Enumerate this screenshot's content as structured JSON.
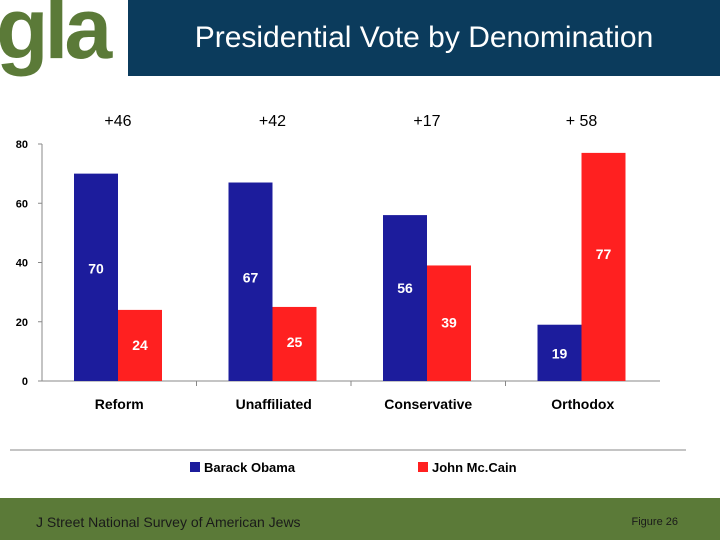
{
  "header": {
    "logo_text": "gla",
    "title": "Presidential Vote by Denomination"
  },
  "footer": {
    "source": "J Street National Survey of American Jews",
    "figure": "Figure 26"
  },
  "colors": {
    "obama": "#1c1c9c",
    "mccain": "#ff2020",
    "header_bg": "#0b3b5c",
    "footer_bg": "#5b7a38"
  },
  "chart_data": {
    "type": "bar",
    "title": "Presidential Vote by Denomination",
    "categories": [
      "Reform",
      "Unaffiliated",
      "Conservative",
      "Orthodox"
    ],
    "series": [
      {
        "name": "Barack Obama",
        "values": [
          70,
          67,
          56,
          19
        ]
      },
      {
        "name": "John Mc.Cain",
        "values": [
          24,
          25,
          39,
          77
        ]
      }
    ],
    "margins": [
      "+46",
      "+42",
      "+17",
      "+ 58"
    ],
    "yticks": [
      0,
      20,
      40,
      60,
      80
    ],
    "ylim": [
      0,
      80
    ],
    "xlabel": "",
    "ylabel": "",
    "legend": "bottom"
  }
}
